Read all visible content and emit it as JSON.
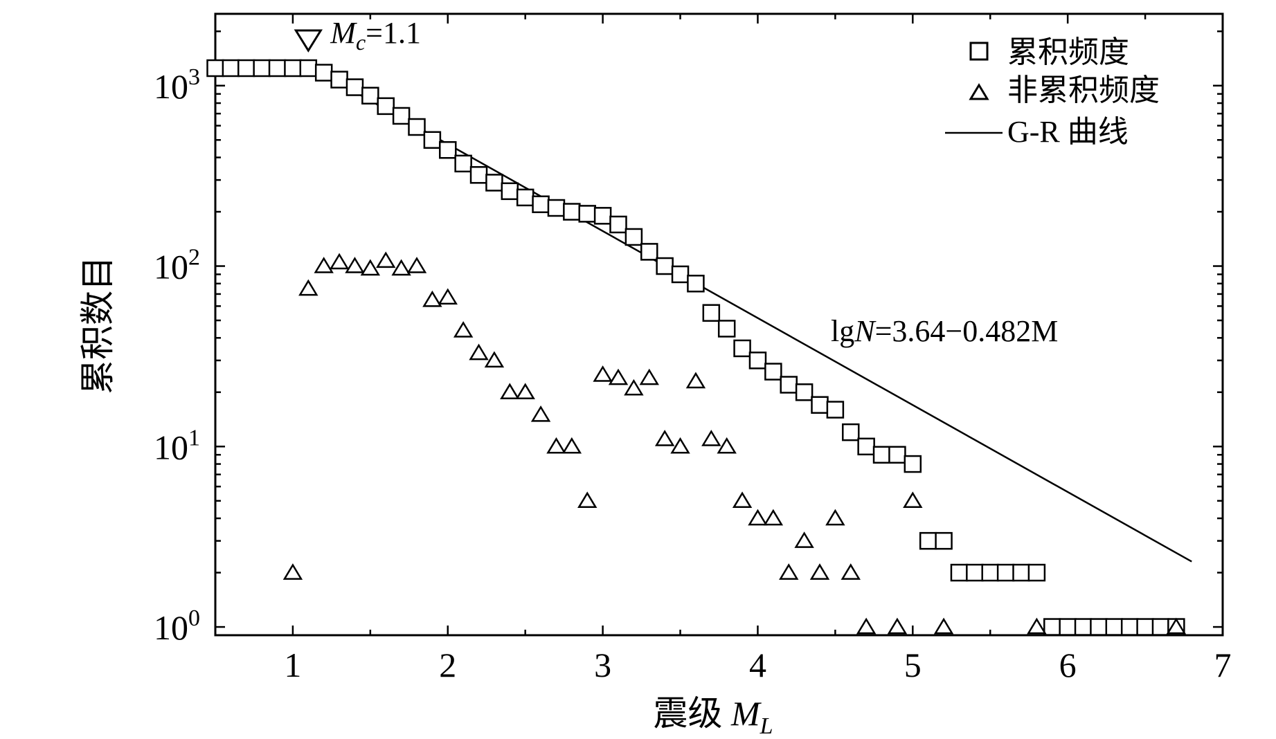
{
  "chart_data": {
    "type": "scatter",
    "title": "",
    "xlabel": "震级 M_L",
    "xlabel_main": "震级 ",
    "xlabel_symbol": "M",
    "xlabel_sub": "L",
    "ylabel": "累积数目",
    "xlim": [
      0.5,
      7.0
    ],
    "ylim": [
      0.9,
      2500
    ],
    "yscale": "log",
    "x_ticks": [
      1,
      2,
      3,
      4,
      5,
      6,
      7
    ],
    "x_tick_labels": [
      "1",
      "2",
      "3",
      "4",
      "5",
      "6",
      "7"
    ],
    "y_ticks": [
      1,
      10,
      100,
      1000
    ],
    "y_tick_base": "10",
    "y_tick_exponents": [
      "0",
      "1",
      "2",
      "3"
    ],
    "legend_position": "top-right",
    "grid": false,
    "series": [
      {
        "name": "累积频度",
        "marker": "square",
        "x": [
          0.5,
          0.6,
          0.7,
          0.8,
          0.9,
          1.0,
          1.1,
          1.2,
          1.3,
          1.4,
          1.5,
          1.6,
          1.7,
          1.8,
          1.9,
          2.0,
          2.1,
          2.2,
          2.3,
          2.4,
          2.5,
          2.6,
          2.7,
          2.8,
          2.9,
          3.0,
          3.1,
          3.2,
          3.3,
          3.4,
          3.5,
          3.6,
          3.7,
          3.8,
          3.9,
          4.0,
          4.1,
          4.2,
          4.3,
          4.4,
          4.5,
          4.6,
          4.7,
          4.8,
          4.9,
          5.0,
          5.1,
          5.2,
          5.3,
          5.4,
          5.5,
          5.6,
          5.7,
          5.8,
          5.9,
          6.0,
          6.1,
          6.2,
          6.3,
          6.4,
          6.5,
          6.6,
          6.7
        ],
        "y": [
          1250,
          1250,
          1250,
          1250,
          1250,
          1250,
          1250,
          1180,
          1080,
          980,
          880,
          770,
          680,
          590,
          500,
          440,
          370,
          320,
          290,
          260,
          240,
          220,
          210,
          200,
          195,
          190,
          170,
          145,
          120,
          100,
          90,
          80,
          55,
          45,
          35,
          30,
          26,
          22,
          20,
          17,
          16,
          12,
          10,
          9,
          9,
          8,
          3,
          3,
          2,
          2,
          2,
          2,
          2,
          2,
          1,
          1,
          1,
          1,
          1,
          1,
          1,
          1,
          1
        ]
      },
      {
        "name": "非累积频度",
        "marker": "triangle",
        "x": [
          1.0,
          1.1,
          1.2,
          1.3,
          1.4,
          1.5,
          1.6,
          1.7,
          1.8,
          1.9,
          2.0,
          2.1,
          2.2,
          2.3,
          2.4,
          2.5,
          2.6,
          2.7,
          2.8,
          2.9,
          3.0,
          3.1,
          3.2,
          3.3,
          3.4,
          3.5,
          3.6,
          3.7,
          3.8,
          3.9,
          4.0,
          4.1,
          4.2,
          4.3,
          4.4,
          4.5,
          4.6,
          4.7,
          4.9,
          5.0,
          5.2,
          5.8,
          6.7
        ],
        "y": [
          2,
          75,
          100,
          105,
          100,
          97,
          107,
          97,
          100,
          65,
          67,
          44,
          33,
          30,
          20,
          20,
          15,
          10,
          10,
          5,
          25,
          24,
          21,
          24,
          11,
          10,
          23,
          11,
          10,
          5,
          4,
          4,
          2,
          3,
          2,
          4,
          2,
          1,
          1,
          5,
          1,
          1,
          1
        ]
      },
      {
        "name": "G-R 曲线",
        "marker": "line",
        "fit": {
          "a": 3.64,
          "b": 0.482,
          "x_range": [
            1.1,
            6.8
          ]
        }
      }
    ],
    "annotations": {
      "mc_symbol": "M",
      "mc_sub": "c",
      "mc_value": "=1.1",
      "mc_x": 1.1,
      "equation_prefix": "lg",
      "equation_var": "N",
      "equation_rest": "=3.64−0.482M"
    }
  }
}
